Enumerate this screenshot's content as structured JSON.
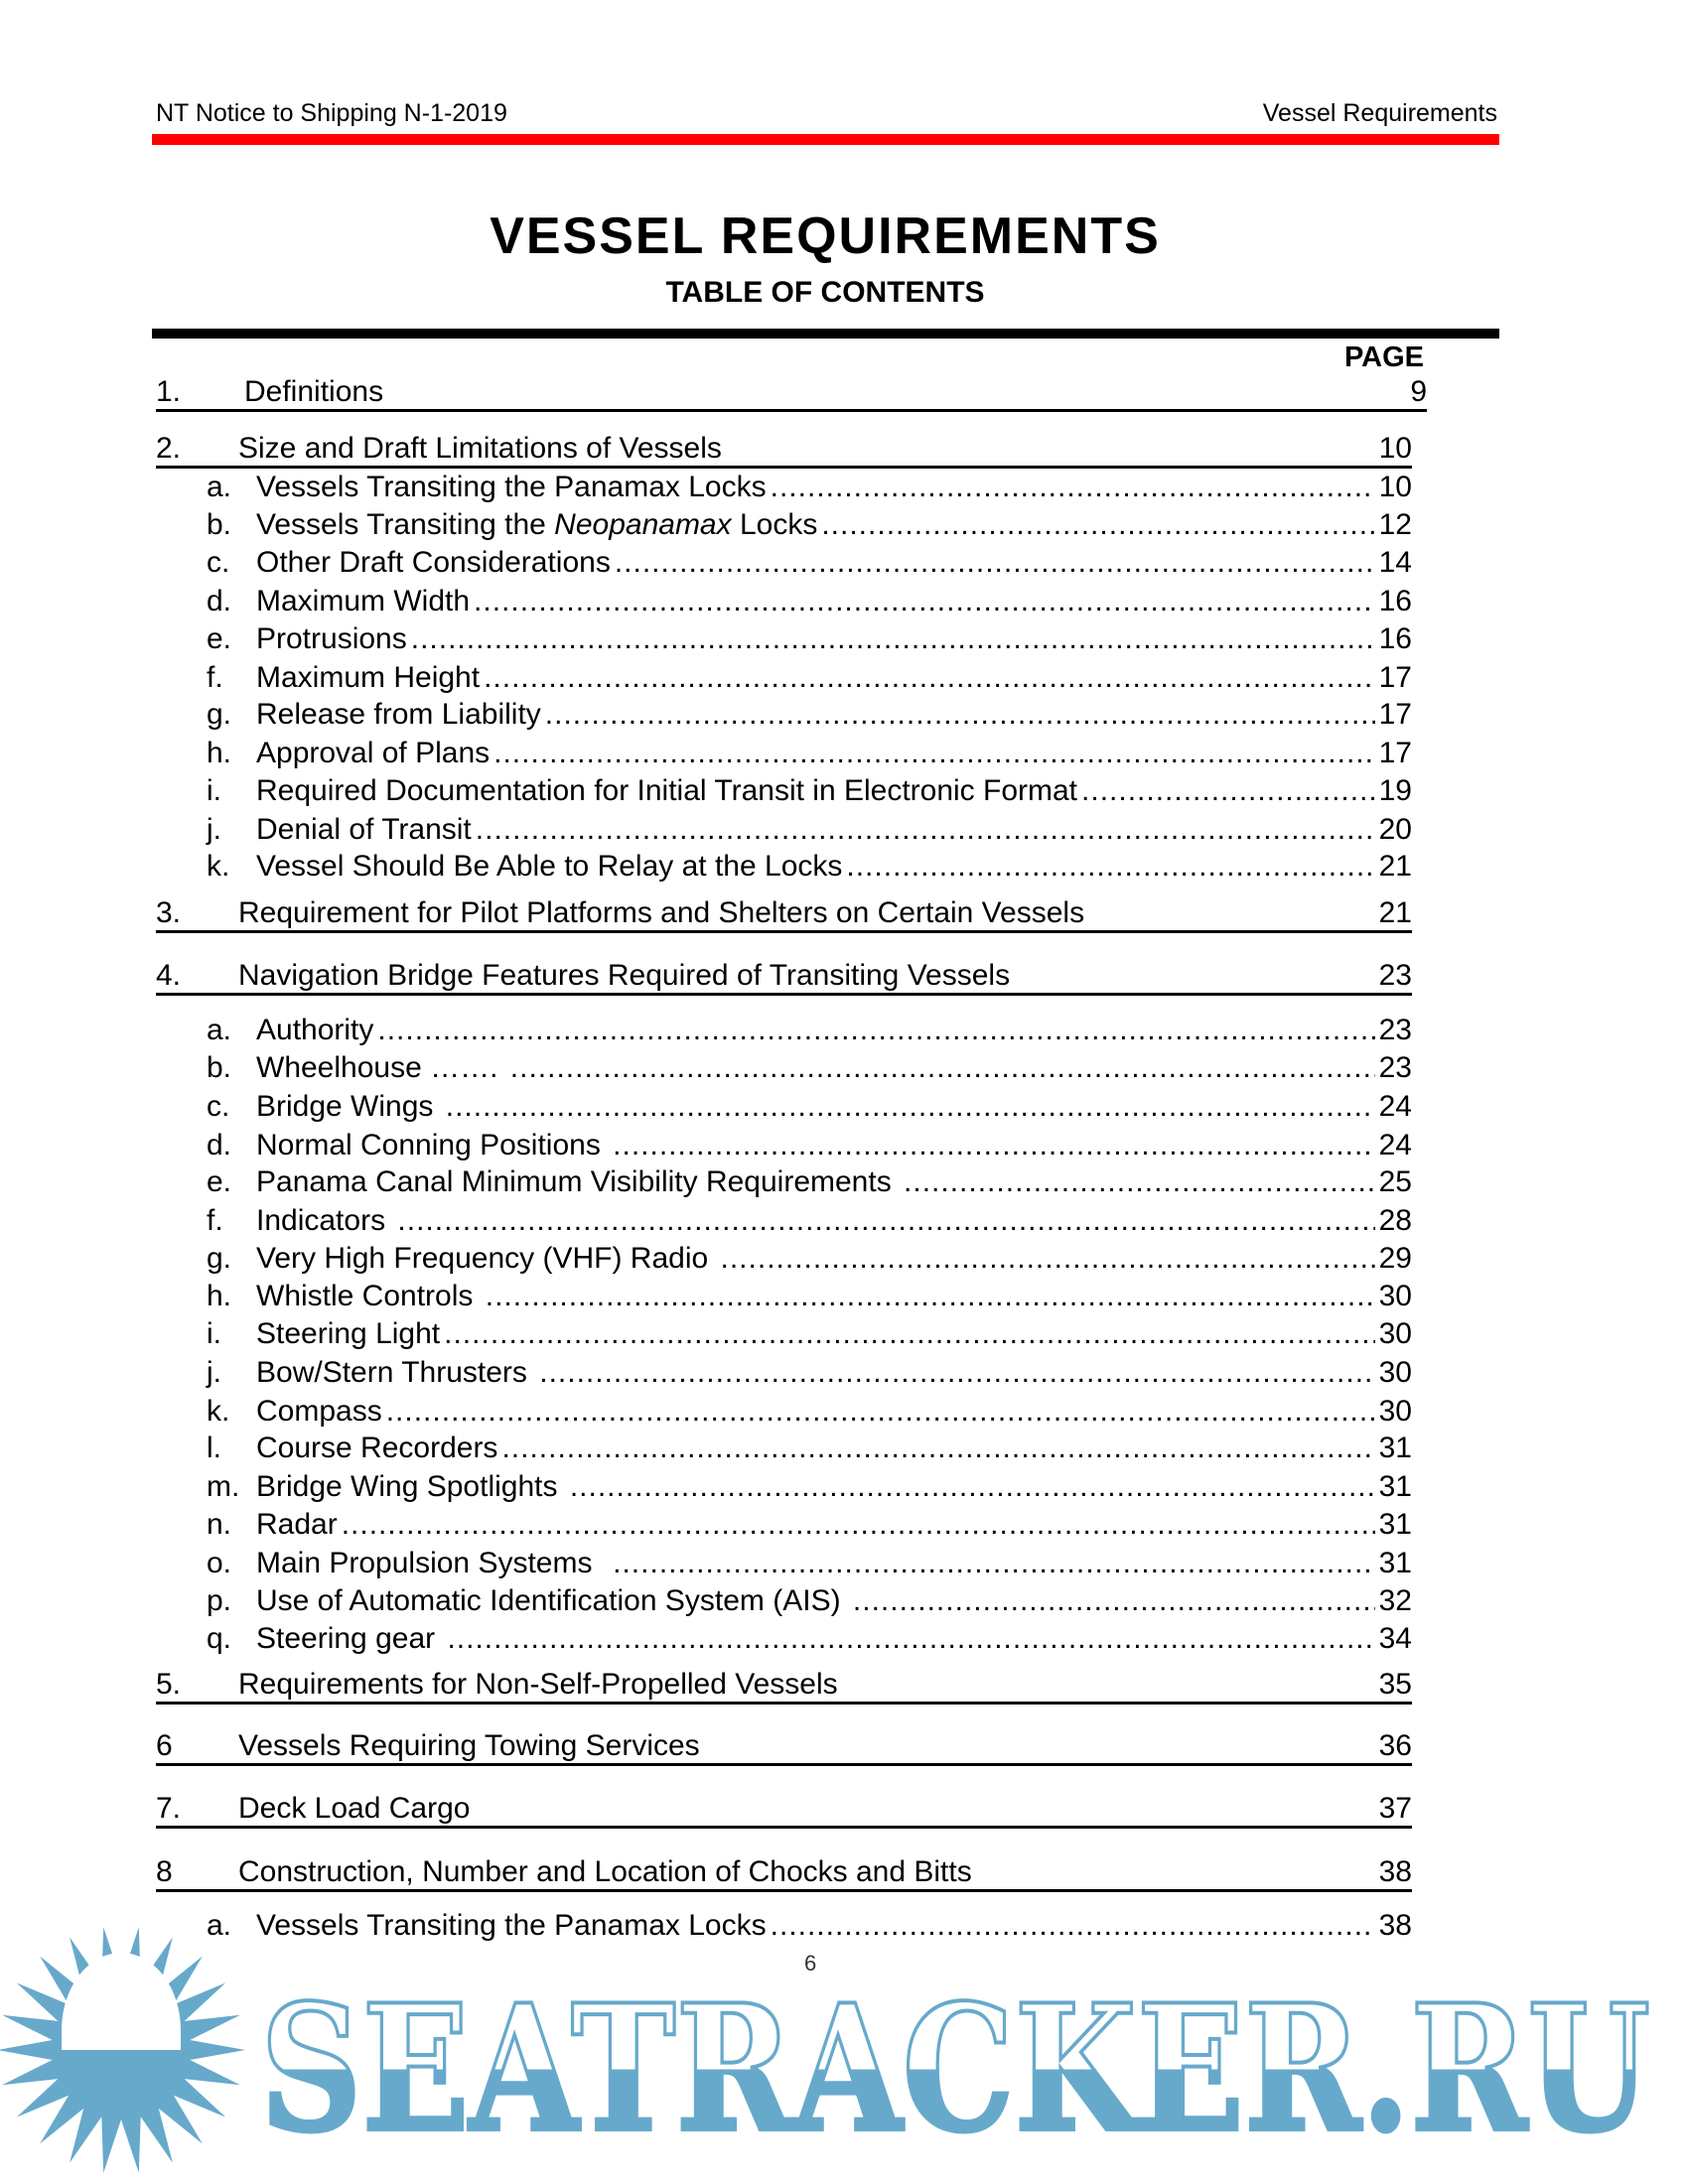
{
  "header": {
    "left": "NT Notice to Shipping N-1-2019",
    "right": "Vessel Requirements",
    "accent_color": "#ff0000"
  },
  "title": "VESSEL REQUIREMENTS",
  "subtitle": "TABLE OF CONTENTS",
  "page_column_label": "PAGE",
  "sections": [
    {
      "num": "1.",
      "text": "Definitions",
      "page": "9",
      "items": []
    },
    {
      "num": "2.",
      "text": "Size and Draft Limitations of Vessels",
      "page": "10",
      "items": [
        {
          "letter": "a.",
          "text": "Vessels Transiting the Panamax Locks",
          "page": "10"
        },
        {
          "letter": "b.",
          "text": "Vessels Transiting the ",
          "italic": "Neopanamax",
          "after": " Locks",
          "page": "12"
        },
        {
          "letter": "c.",
          "text": "Other Draft Considerations",
          "page": "14"
        },
        {
          "letter": "d.",
          "text": "Maximum Width",
          "page": "16"
        },
        {
          "letter": "e.",
          "text": "Protrusions",
          "page": "16"
        },
        {
          "letter": "f.",
          "text": "Maximum Height",
          "page": "17"
        },
        {
          "letter": "g.",
          "text": "Release from Liability",
          "page": "17"
        },
        {
          "letter": "h.",
          "text": "Approval of Plans",
          "page": "17"
        },
        {
          "letter": "i.",
          "text": "Required Documentation for Initial Transit in Electronic Format",
          "page": "19"
        },
        {
          "letter": "j.",
          "text": "Denial of Transit",
          "page": "20"
        },
        {
          "letter": "k.",
          "text": "Vessel Should Be Able to Relay at the Locks",
          "page": "21"
        }
      ]
    },
    {
      "num": "3.",
      "text": "Requirement for Pilot Platforms and Shelters on Certain Vessels",
      "page": "21",
      "items": []
    },
    {
      "num": "4.",
      "text": "Navigation Bridge Features Required of Transiting Vessels",
      "page": "23",
      "items": [
        {
          "letter": "a.",
          "text": "Authority",
          "page": "23"
        },
        {
          "letter": "b.",
          "text": "Wheelhouse ……. ",
          "page": "23"
        },
        {
          "letter": "c.",
          "text": "Bridge Wings ",
          "page": "24"
        },
        {
          "letter": "d.",
          "text": "Normal Conning Positions ",
          "page": "24"
        },
        {
          "letter": "e.",
          "text": "Panama Canal Minimum Visibility Requirements ",
          "page": "25"
        },
        {
          "letter": "f.",
          "text": "Indicators ",
          "page": "28"
        },
        {
          "letter": "g.",
          "text": "Very High Frequency (VHF) Radio ",
          "page": "29"
        },
        {
          "letter": "h.",
          "text": "Whistle Controls ",
          "page": "30"
        },
        {
          "letter": "i.",
          "text": "Steering Light",
          "page": "30"
        },
        {
          "letter": "j.",
          "text": "Bow/Stern Thrusters ",
          "page": "30"
        },
        {
          "letter": "k.",
          "text": "Compass",
          "page": "30"
        },
        {
          "letter": "l.",
          "text": "Course Recorders",
          "page": "31"
        },
        {
          "letter": "m.",
          "text": "Bridge Wing Spotlights ",
          "page": "31"
        },
        {
          "letter": "n.",
          "text": "Radar",
          "page": "31"
        },
        {
          "letter": "o.",
          "text": "Main Propulsion Systems  ",
          "page": "31"
        },
        {
          "letter": "p.",
          "text": "Use of Automatic Identification System (AIS) ",
          "page": "32"
        },
        {
          "letter": "q.",
          "text": "Steering gear ",
          "page": "34"
        }
      ]
    },
    {
      "num": "5.",
      "text": "Requirements for Non-Self-Propelled Vessels",
      "page": "35",
      "items": []
    },
    {
      "num": "6",
      "text": "Vessels Requiring Towing Services",
      "page": "36",
      "items": []
    },
    {
      "num": "7.",
      "text": "Deck Load Cargo",
      "page": "37",
      "items": []
    },
    {
      "num": "8",
      "text": "Construction, Number and Location of Chocks and Bitts",
      "page": "38",
      "items": [
        {
          "letter": "a.",
          "text": "Vessels Transiting the Panamax Locks",
          "page": "38"
        }
      ]
    }
  ],
  "page_number": "6",
  "watermark": {
    "text": "SEATRACKER.RU",
    "color": "#67a9cb"
  }
}
